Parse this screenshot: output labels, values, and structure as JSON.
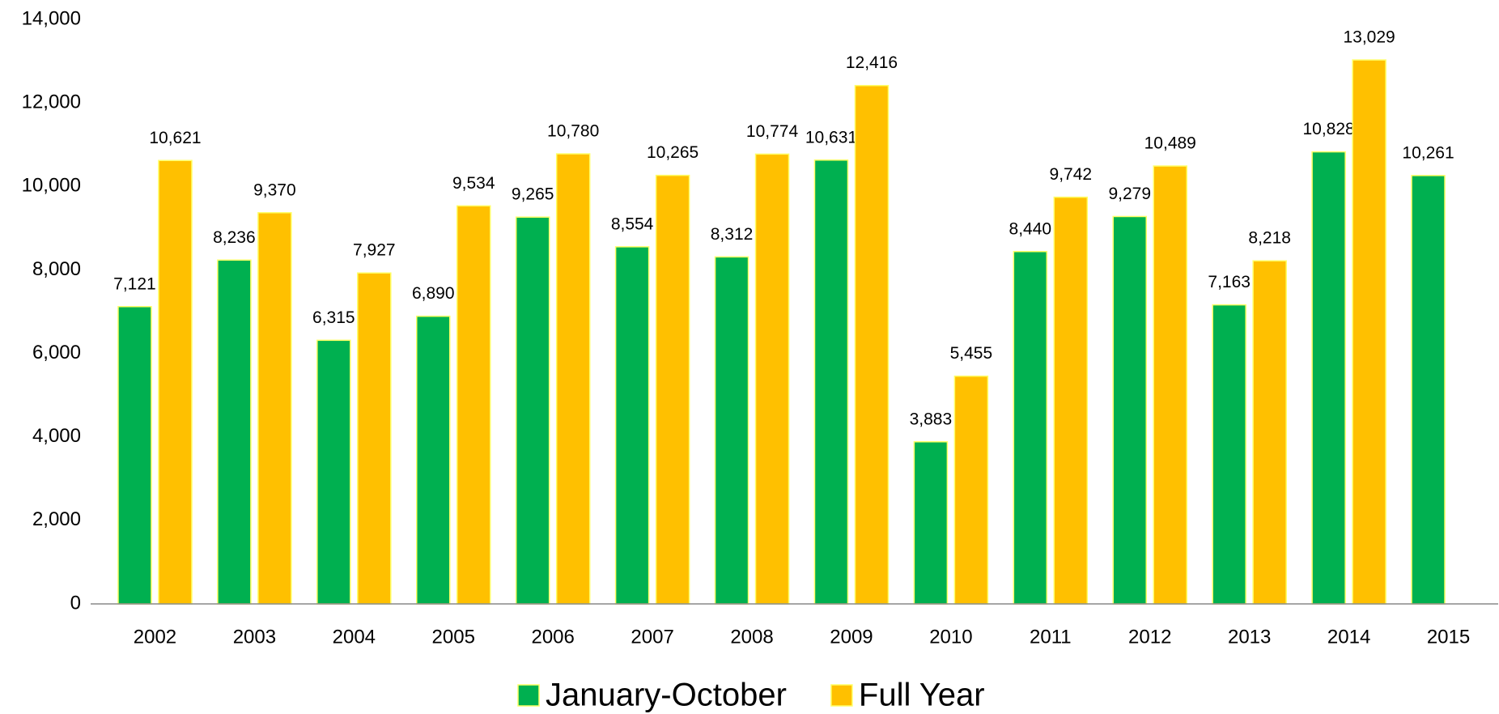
{
  "chart_data": {
    "type": "bar",
    "categories": [
      "2002",
      "2003",
      "2004",
      "2005",
      "2006",
      "2007",
      "2008",
      "2009",
      "2010",
      "2011",
      "2012",
      "2013",
      "2014",
      "2015"
    ],
    "series": [
      {
        "name": "January-October",
        "color": "#00b050",
        "values": [
          7121,
          8236,
          6315,
          6890,
          9265,
          8554,
          8312,
          10631,
          3883,
          8440,
          9279,
          7163,
          10828,
          10261
        ],
        "value_labels": [
          "7,121",
          "8,236",
          "6,315",
          "6,890",
          "9,265",
          "8,554",
          "8,312",
          "10,631",
          "3,883",
          "8,440",
          "9,279",
          "7,163",
          "10,828",
          "10,261"
        ]
      },
      {
        "name": "Full Year",
        "color": "#ffc000",
        "values": [
          10621,
          9370,
          7927,
          9534,
          10780,
          10265,
          10774,
          12416,
          5455,
          9742,
          10489,
          8218,
          13029,
          null
        ],
        "value_labels": [
          "10,621",
          "9,370",
          "7,927",
          "9,534",
          "10,780",
          "10,265",
          "10,774",
          "12,416",
          "5,455",
          "9,742",
          "10,489",
          "8,218",
          "13,029",
          null
        ]
      }
    ],
    "ylim": [
      0,
      14000
    ],
    "yticks": [
      0,
      {
        "value": 2000,
        "label": "2,000"
      },
      {
        "value": 4000,
        "label": "4,000"
      },
      {
        "value": 6000,
        "label": "6,000"
      },
      {
        "value": 8000,
        "label": "8,000"
      },
      {
        "value": 10000,
        "label": "10,000"
      },
      {
        "value": 12000,
        "label": "12,000"
      },
      {
        "value": 14000,
        "label": "14,000"
      }
    ],
    "legend": "bottom",
    "grid": false
  }
}
